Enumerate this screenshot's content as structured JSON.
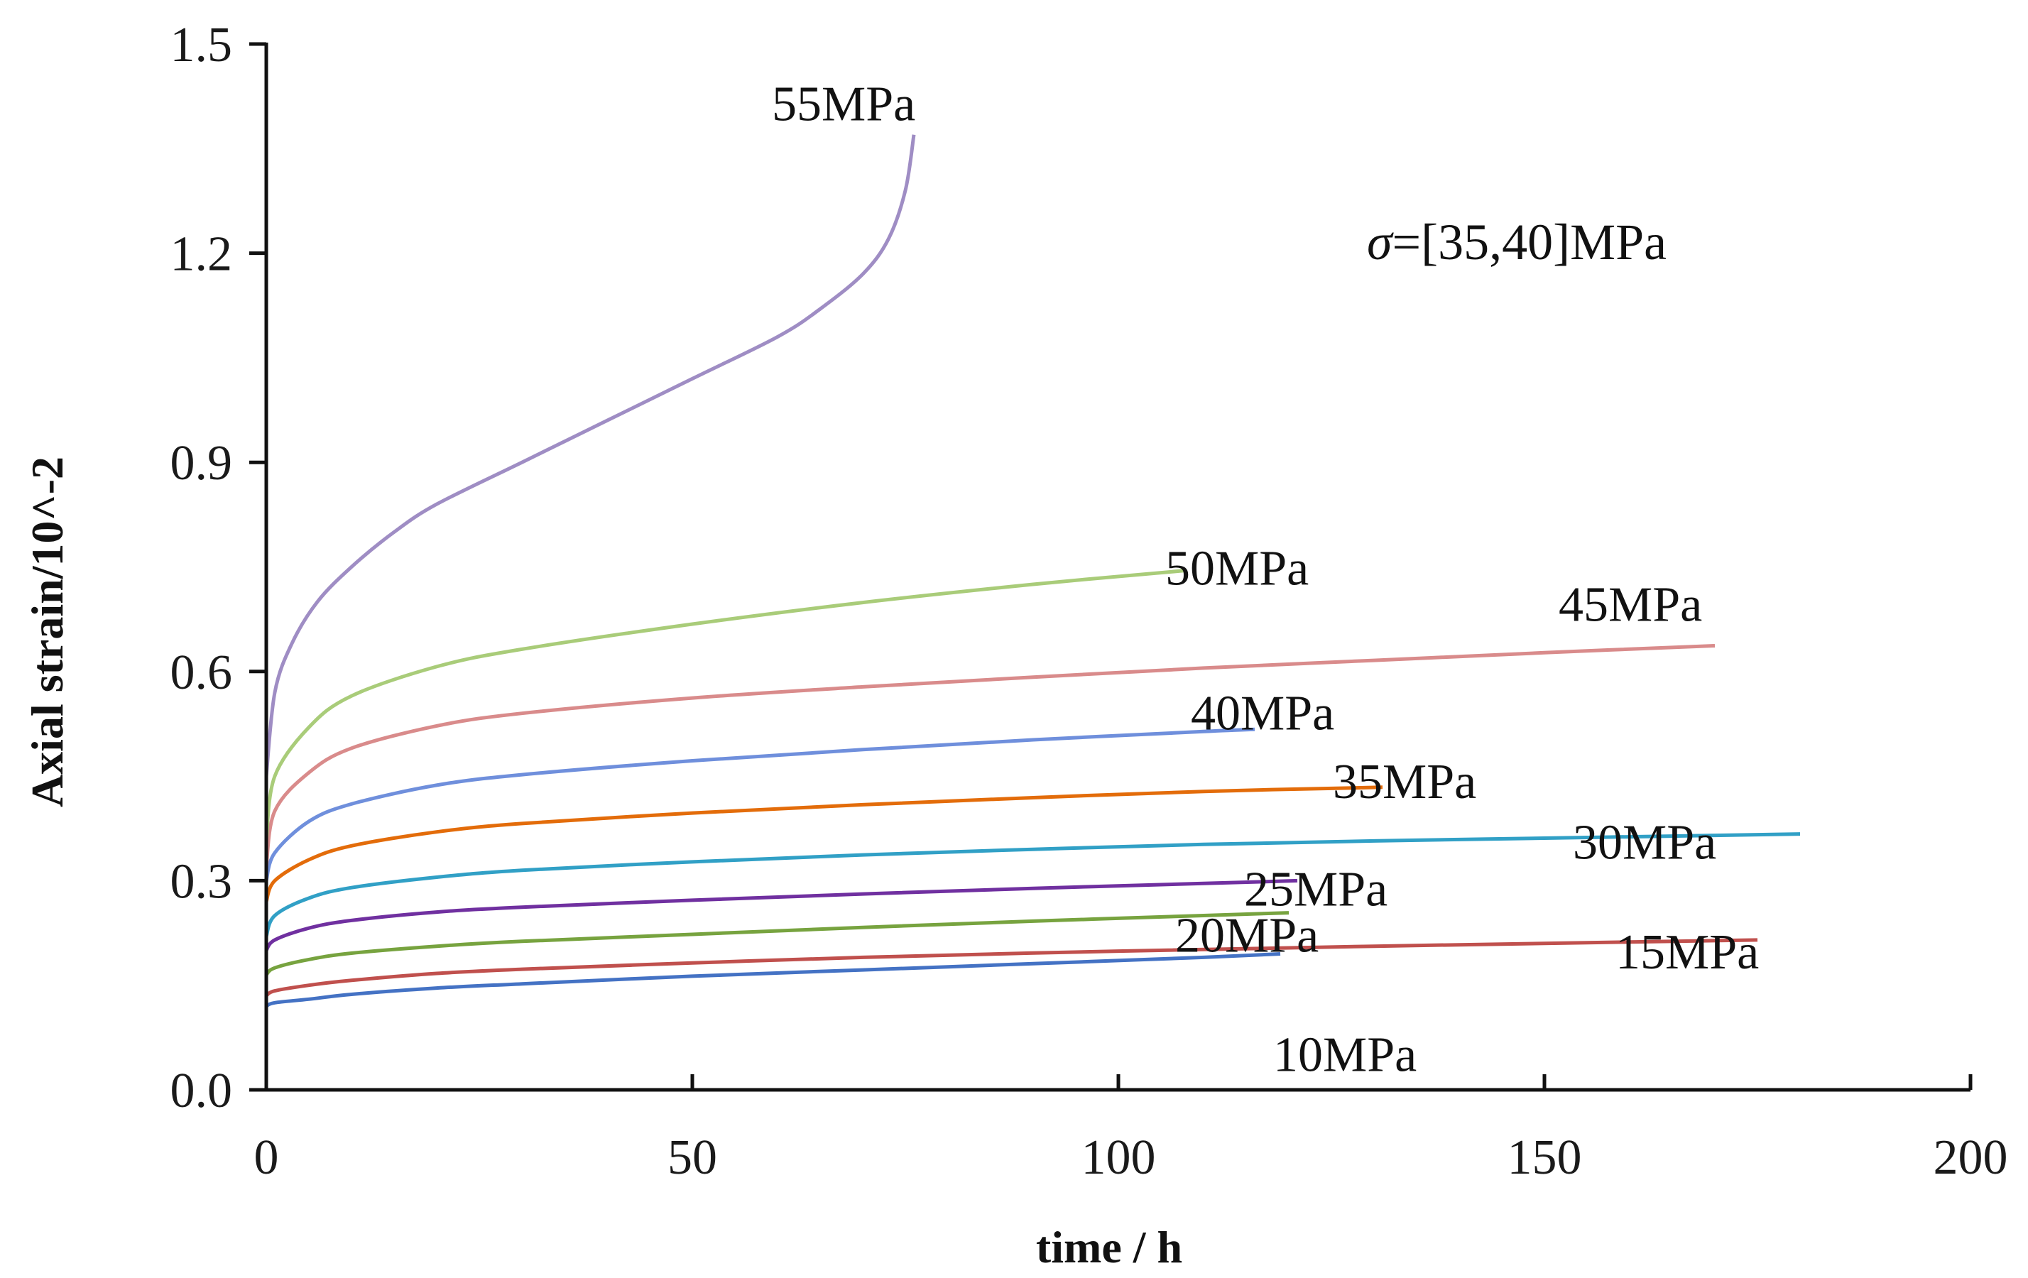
{
  "chart_data": {
    "type": "line",
    "title": "",
    "xlabel": "time / h",
    "ylabel": "Axial strain/10^-2",
    "xlim": [
      0,
      200
    ],
    "ylim": [
      0,
      1.5
    ],
    "xticks": [
      0,
      50,
      100,
      150,
      200
    ],
    "yticks": [
      0.0,
      0.3,
      0.6,
      0.9,
      1.2,
      1.5
    ],
    "xtick_labels": [
      "0",
      "50",
      "100",
      "150",
      "200"
    ],
    "ytick_labels": [
      "0.0",
      "0.3",
      "0.6",
      "0.9",
      "1.2",
      "1.5"
    ],
    "grid": false,
    "annotation": {
      "symbol": "σ",
      "text": "=[35,40]MPa"
    },
    "series": [
      {
        "name": "10MPa",
        "color": "#4472c4",
        "x": [
          0,
          1,
          5,
          10,
          20,
          30,
          50,
          70,
          90,
          110,
          119
        ],
        "y": [
          0.12,
          0.125,
          0.13,
          0.137,
          0.146,
          0.152,
          0.163,
          0.172,
          0.181,
          0.19,
          0.195
        ]
      },
      {
        "name": "15MPa",
        "color": "#c0504d",
        "x": [
          0,
          1,
          5,
          10,
          20,
          30,
          50,
          70,
          100,
          130,
          160,
          175
        ],
        "y": [
          0.135,
          0.142,
          0.15,
          0.157,
          0.167,
          0.173,
          0.182,
          0.19,
          0.199,
          0.206,
          0.212,
          0.215
        ]
      },
      {
        "name": "20MPa",
        "color": "#77a33f",
        "x": [
          0,
          1,
          5,
          10,
          20,
          30,
          50,
          70,
          90,
          110,
          120
        ],
        "y": [
          0.165,
          0.175,
          0.187,
          0.196,
          0.206,
          0.213,
          0.223,
          0.233,
          0.242,
          0.25,
          0.254
        ]
      },
      {
        "name": "25MPa",
        "color": "#7030a0",
        "x": [
          0,
          1,
          5,
          10,
          20,
          30,
          50,
          70,
          90,
          110,
          121
        ],
        "y": [
          0.2,
          0.215,
          0.232,
          0.243,
          0.255,
          0.262,
          0.272,
          0.281,
          0.289,
          0.296,
          0.3
        ]
      },
      {
        "name": "30MPa",
        "color": "#31a0c6",
        "x": [
          0,
          1,
          5,
          10,
          20,
          30,
          50,
          70,
          90,
          110,
          130,
          150,
          170,
          180
        ],
        "y": [
          0.22,
          0.25,
          0.275,
          0.29,
          0.305,
          0.315,
          0.327,
          0.337,
          0.345,
          0.352,
          0.357,
          0.361,
          0.365,
          0.367
        ]
      },
      {
        "name": "35MPa",
        "color": "#e36c0a",
        "x": [
          0,
          1,
          5,
          10,
          20,
          30,
          50,
          70,
          90,
          110,
          131
        ],
        "y": [
          0.27,
          0.3,
          0.33,
          0.35,
          0.37,
          0.382,
          0.397,
          0.409,
          0.419,
          0.428,
          0.434
        ]
      },
      {
        "name": "40MPa",
        "color": "#6f8fdc",
        "x": [
          0,
          1,
          5,
          10,
          20,
          30,
          50,
          70,
          90,
          110,
          116
        ],
        "y": [
          0.3,
          0.34,
          0.385,
          0.41,
          0.437,
          0.452,
          0.472,
          0.488,
          0.502,
          0.514,
          0.517
        ]
      },
      {
        "name": "45MPa",
        "color": "#d98b8b",
        "x": [
          0,
          1,
          5,
          10,
          20,
          30,
          50,
          70,
          90,
          110,
          130,
          150,
          170
        ],
        "y": [
          0.32,
          0.4,
          0.455,
          0.49,
          0.522,
          0.54,
          0.562,
          0.578,
          0.592,
          0.605,
          0.616,
          0.627,
          0.637
        ]
      },
      {
        "name": "50MPa",
        "color": "#a9cc79",
        "x": [
          0,
          1,
          5,
          10,
          20,
          30,
          50,
          70,
          90,
          108
        ],
        "y": [
          0.36,
          0.45,
          0.52,
          0.565,
          0.607,
          0.632,
          0.668,
          0.699,
          0.725,
          0.745
        ]
      },
      {
        "name": "55MPa",
        "color": "#9f8dc4",
        "x": [
          0,
          1,
          3,
          6,
          10,
          15,
          20,
          30,
          40,
          50,
          60,
          65,
          70,
          73,
          75,
          76
        ],
        "y": [
          0.45,
          0.57,
          0.64,
          0.7,
          0.75,
          0.8,
          0.84,
          0.9,
          0.96,
          1.02,
          1.08,
          1.12,
          1.17,
          1.22,
          1.29,
          1.37
        ]
      }
    ]
  }
}
